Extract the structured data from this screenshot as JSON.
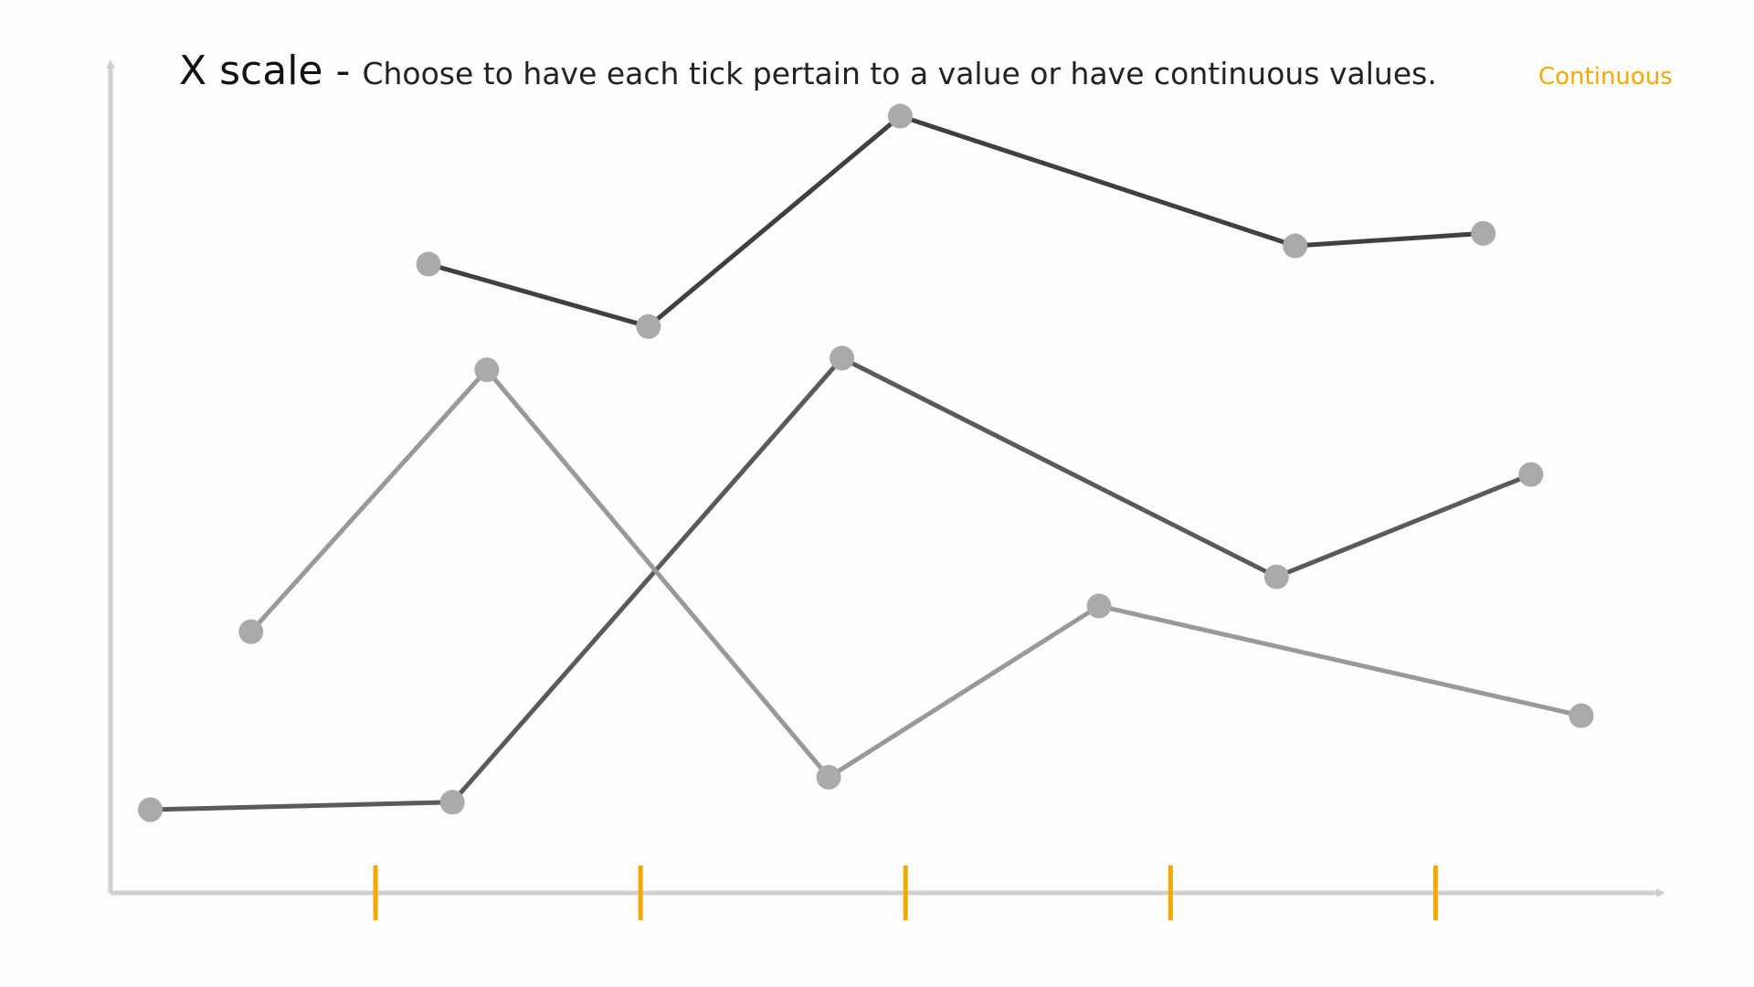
{
  "chart_data": {
    "type": "line",
    "title": "X scale -",
    "subtitle": "Choose to have each tick pertain to a value or have continuous values.",
    "annotation": "Continuous",
    "xlim": [
      0,
      5.85
    ],
    "ylim": [
      0,
      10
    ],
    "xticks": [
      1,
      2,
      3,
      4,
      5
    ],
    "tick_color": "#f5a800",
    "marker_color": "#aaaaaa",
    "series": [
      {
        "color": "#404040",
        "x": [
          1.2,
          2.03,
          2.98,
          4.47,
          5.18
        ],
        "values": [
          7.56,
          6.81,
          9.34,
          7.78,
          7.93
        ]
      },
      {
        "color": "#5a5a5a",
        "x": [
          0.15,
          1.29,
          2.76,
          4.4,
          5.36
        ],
        "values": [
          1.0,
          1.09,
          6.43,
          3.8,
          5.03
        ]
      },
      {
        "color": "#999999",
        "x": [
          0.53,
          1.42,
          2.71,
          3.73,
          5.55
        ],
        "values": [
          3.14,
          6.29,
          1.39,
          3.45,
          2.13
        ]
      }
    ]
  }
}
